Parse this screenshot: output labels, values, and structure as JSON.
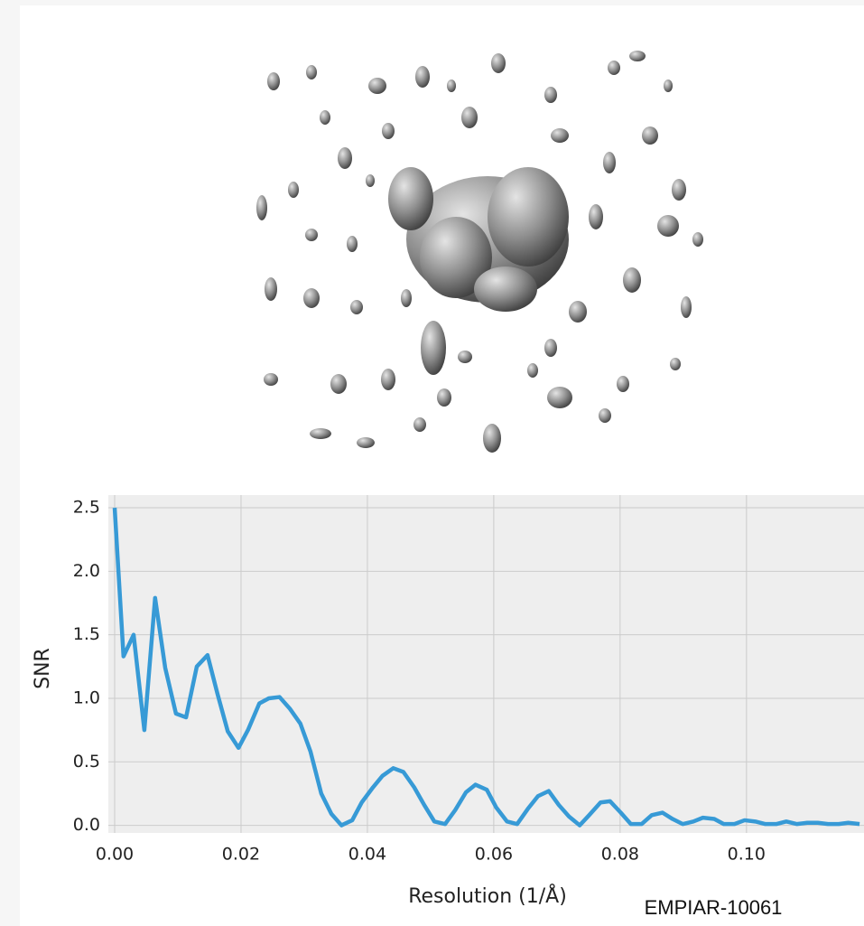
{
  "chart_data": {
    "type": "line",
    "xlabel": "Resolution (1/Å)",
    "ylabel": "SNR",
    "annotation": "EMPIAR-10061",
    "x": [
      0,
      0.0014,
      0.003,
      0.0047,
      0.0064,
      0.008,
      0.0097,
      0.0113,
      0.013,
      0.0147,
      0.0163,
      0.0179,
      0.0196,
      0.0211,
      0.0229,
      0.0244,
      0.0261,
      0.0277,
      0.0294,
      0.031,
      0.0327,
      0.0343,
      0.0359,
      0.0376,
      0.0391,
      0.0409,
      0.0424,
      0.0441,
      0.0457,
      0.0474,
      0.049,
      0.0506,
      0.0523,
      0.0539,
      0.0556,
      0.0571,
      0.0589,
      0.0604,
      0.0621,
      0.0637,
      0.0654,
      0.067,
      0.0687,
      0.0703,
      0.0719,
      0.0736,
      0.0751,
      0.0769,
      0.0784,
      0.0801,
      0.0817,
      0.0834,
      0.085,
      0.0867,
      0.0883,
      0.0899,
      0.0916,
      0.0931,
      0.0949,
      0.0964,
      0.0981,
      0.0997,
      0.1014,
      0.103,
      0.1047,
      0.1063,
      0.108,
      0.1096,
      0.1113,
      0.1129,
      0.1146,
      0.1161,
      0.1179
    ],
    "series": [
      {
        "color": "#379ad6",
        "values": [
          2.5,
          1.33,
          1.5,
          0.75,
          1.79,
          1.24,
          0.88,
          0.85,
          1.25,
          1.34,
          1.03,
          0.74,
          0.61,
          0.75,
          0.96,
          1.0,
          1.01,
          0.92,
          0.8,
          0.58,
          0.25,
          0.09,
          0.0,
          0.04,
          0.18,
          0.3,
          0.39,
          0.45,
          0.42,
          0.3,
          0.16,
          0.03,
          0.01,
          0.12,
          0.26,
          0.32,
          0.28,
          0.14,
          0.03,
          0.01,
          0.13,
          0.23,
          0.27,
          0.16,
          0.07,
          0.0,
          0.08,
          0.18,
          0.19,
          0.1,
          0.01,
          0.01,
          0.08,
          0.1,
          0.05,
          0.01,
          0.03,
          0.06,
          0.05,
          0.01,
          0.01,
          0.04,
          0.03,
          0.01,
          0.01,
          0.03,
          0.01,
          0.02,
          0.02,
          0.01,
          0.01,
          0.02,
          0.01
        ]
      }
    ],
    "xlim": [
      -0.001,
      0.1186
    ],
    "ylim": [
      -0.06,
      2.6
    ],
    "xticks": [
      {
        "value": 0,
        "label": "0.00"
      },
      {
        "value": 0.02,
        "label": "0.02"
      },
      {
        "value": 0.04,
        "label": "0.04"
      },
      {
        "value": 0.06,
        "label": "0.06"
      },
      {
        "value": 0.08,
        "label": "0.08"
      },
      {
        "value": 0.1,
        "label": "0.10"
      }
    ],
    "yticks": [
      {
        "value": 0,
        "label": "0.0"
      },
      0.5,
      {
        "value": 1,
        "label": "1.0"
      },
      1.5,
      {
        "value": 2,
        "label": "2.0"
      },
      2.5
    ],
    "grid": true
  }
}
